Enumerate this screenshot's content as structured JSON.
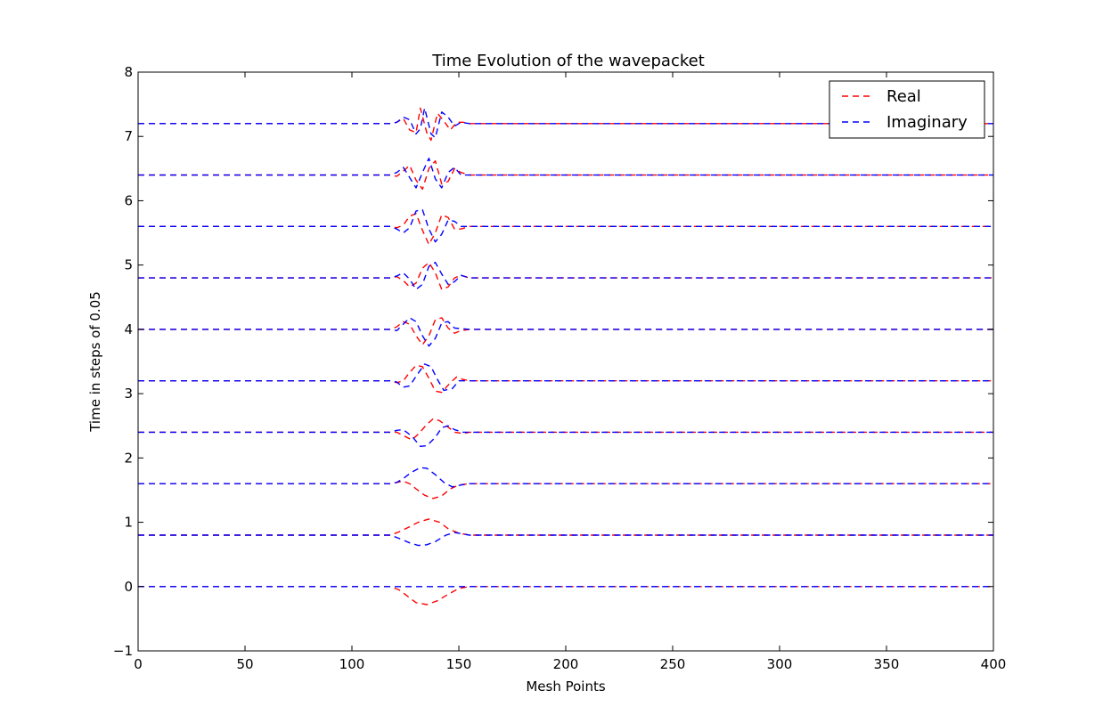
{
  "chart_data": {
    "type": "line",
    "title": "Time Evolution of the wavepacket",
    "xlabel": "Mesh Points",
    "ylabel": "Time in steps of 0.05",
    "xlim": [
      0,
      400
    ],
    "ylim": [
      -1,
      8
    ],
    "x_ticks": [
      "0",
      "50",
      "100",
      "150",
      "200",
      "250",
      "300",
      "350",
      "400"
    ],
    "y_ticks": [
      "−1",
      "0",
      "1",
      "2",
      "3",
      "4",
      "5",
      "6",
      "7",
      "8"
    ],
    "grid": false,
    "legend_position": "top-right",
    "packet_center": 135,
    "packet_region": [
      118,
      155
    ],
    "series": [
      {
        "name": "Real",
        "color": "#ff0000",
        "dash": "dashed"
      },
      {
        "name": "Imaginary",
        "color": "#0000ff",
        "dash": "dashed"
      }
    ],
    "snapshots": [
      {
        "offset": 0.0,
        "real": [
          [
            118,
            0.0
          ],
          [
            122,
            -0.05
          ],
          [
            126,
            -0.15
          ],
          [
            130,
            -0.25
          ],
          [
            135,
            -0.28
          ],
          [
            140,
            -0.22
          ],
          [
            145,
            -0.12
          ],
          [
            150,
            -0.03
          ],
          [
            155,
            0.0
          ]
        ],
        "imag": [
          [
            118,
            0.0
          ],
          [
            135,
            0.0
          ],
          [
            155,
            0.0
          ]
        ]
      },
      {
        "offset": 0.8,
        "real": [
          [
            118,
            0.8
          ],
          [
            122,
            0.85
          ],
          [
            127,
            0.93
          ],
          [
            131,
            1.0
          ],
          [
            136,
            1.05
          ],
          [
            141,
            1.0
          ],
          [
            145,
            0.9
          ],
          [
            150,
            0.83
          ],
          [
            155,
            0.8
          ]
        ],
        "imag": [
          [
            118,
            0.8
          ],
          [
            122,
            0.75
          ],
          [
            127,
            0.68
          ],
          [
            131,
            0.64
          ],
          [
            135,
            0.65
          ],
          [
            139,
            0.7
          ],
          [
            144,
            0.8
          ],
          [
            148,
            0.84
          ],
          [
            155,
            0.8
          ]
        ]
      },
      {
        "offset": 1.6,
        "real": [
          [
            118,
            1.6
          ],
          [
            121,
            1.62
          ],
          [
            124,
            1.64
          ],
          [
            127,
            1.6
          ],
          [
            130,
            1.52
          ],
          [
            134,
            1.42
          ],
          [
            138,
            1.37
          ],
          [
            142,
            1.41
          ],
          [
            146,
            1.52
          ],
          [
            150,
            1.58
          ],
          [
            155,
            1.6
          ]
        ],
        "imag": [
          [
            118,
            1.6
          ],
          [
            121,
            1.62
          ],
          [
            124,
            1.68
          ],
          [
            128,
            1.78
          ],
          [
            132,
            1.85
          ],
          [
            135,
            1.84
          ],
          [
            139,
            1.74
          ],
          [
            143,
            1.62
          ],
          [
            147,
            1.55
          ],
          [
            151,
            1.58
          ],
          [
            155,
            1.6
          ]
        ]
      },
      {
        "offset": 2.4,
        "real": [
          [
            118,
            2.4
          ],
          [
            121,
            2.4
          ],
          [
            124,
            2.35
          ],
          [
            128,
            2.28
          ],
          [
            131,
            2.37
          ],
          [
            135,
            2.52
          ],
          [
            138,
            2.61
          ],
          [
            141,
            2.58
          ],
          [
            145,
            2.48
          ],
          [
            148,
            2.4
          ],
          [
            152,
            2.38
          ],
          [
            155,
            2.4
          ]
        ],
        "imag": [
          [
            118,
            2.4
          ],
          [
            121,
            2.43
          ],
          [
            124,
            2.44
          ],
          [
            128,
            2.34
          ],
          [
            132,
            2.18
          ],
          [
            135,
            2.19
          ],
          [
            139,
            2.32
          ],
          [
            142,
            2.47
          ],
          [
            145,
            2.5
          ],
          [
            148,
            2.44
          ],
          [
            152,
            2.4
          ],
          [
            155,
            2.4
          ]
        ]
      },
      {
        "offset": 3.2,
        "real": [
          [
            118,
            3.2
          ],
          [
            121,
            3.17
          ],
          [
            124,
            3.2
          ],
          [
            127,
            3.33
          ],
          [
            130,
            3.44
          ],
          [
            133,
            3.42
          ],
          [
            136,
            3.24
          ],
          [
            139,
            3.04
          ],
          [
            142,
            3.02
          ],
          [
            146,
            3.17
          ],
          [
            149,
            3.26
          ],
          [
            152,
            3.22
          ],
          [
            155,
            3.2
          ]
        ],
        "imag": [
          [
            118,
            3.2
          ],
          [
            121,
            3.18
          ],
          [
            124,
            3.1
          ],
          [
            127,
            3.12
          ],
          [
            130,
            3.27
          ],
          [
            134,
            3.46
          ],
          [
            137,
            3.42
          ],
          [
            140,
            3.22
          ],
          [
            143,
            3.05
          ],
          [
            147,
            3.08
          ],
          [
            150,
            3.2
          ],
          [
            155,
            3.2
          ]
        ]
      },
      {
        "offset": 4.0,
        "real": [
          [
            118,
            4.0
          ],
          [
            121,
            4.04
          ],
          [
            124,
            4.12
          ],
          [
            127,
            4.08
          ],
          [
            130,
            3.9
          ],
          [
            133,
            3.76
          ],
          [
            136,
            3.9
          ],
          [
            139,
            4.15
          ],
          [
            142,
            4.18
          ],
          [
            145,
            4.02
          ],
          [
            148,
            3.94
          ],
          [
            151,
            3.98
          ],
          [
            155,
            4.0
          ]
        ],
        "imag": [
          [
            118,
            4.0
          ],
          [
            121,
            3.98
          ],
          [
            124,
            4.08
          ],
          [
            127,
            4.18
          ],
          [
            130,
            4.12
          ],
          [
            133,
            3.9
          ],
          [
            136,
            3.74
          ],
          [
            139,
            3.86
          ],
          [
            142,
            4.1
          ],
          [
            145,
            4.12
          ],
          [
            148,
            4.02
          ],
          [
            155,
            4.0
          ]
        ]
      },
      {
        "offset": 4.8,
        "real": [
          [
            118,
            4.8
          ],
          [
            121,
            4.82
          ],
          [
            124,
            4.76
          ],
          [
            127,
            4.66
          ],
          [
            130,
            4.72
          ],
          [
            133,
            4.95
          ],
          [
            136,
            5.04
          ],
          [
            139,
            4.88
          ],
          [
            142,
            4.62
          ],
          [
            145,
            4.66
          ],
          [
            148,
            4.8
          ],
          [
            151,
            4.84
          ],
          [
            155,
            4.8
          ]
        ],
        "imag": [
          [
            118,
            4.8
          ],
          [
            121,
            4.83
          ],
          [
            124,
            4.88
          ],
          [
            127,
            4.78
          ],
          [
            130,
            4.62
          ],
          [
            133,
            4.7
          ],
          [
            136,
            4.98
          ],
          [
            139,
            5.04
          ],
          [
            142,
            4.86
          ],
          [
            145,
            4.7
          ],
          [
            148,
            4.74
          ],
          [
            151,
            4.84
          ],
          [
            155,
            4.8
          ]
        ]
      },
      {
        "offset": 5.6,
        "real": [
          [
            118,
            5.6
          ],
          [
            121,
            5.58
          ],
          [
            124,
            5.62
          ],
          [
            127,
            5.76
          ],
          [
            130,
            5.8
          ],
          [
            133,
            5.54
          ],
          [
            136,
            5.32
          ],
          [
            139,
            5.5
          ],
          [
            142,
            5.78
          ],
          [
            145,
            5.74
          ],
          [
            148,
            5.56
          ],
          [
            151,
            5.56
          ],
          [
            155,
            5.6
          ]
        ],
        "imag": [
          [
            118,
            5.6
          ],
          [
            121,
            5.56
          ],
          [
            124,
            5.5
          ],
          [
            127,
            5.58
          ],
          [
            130,
            5.84
          ],
          [
            133,
            5.86
          ],
          [
            136,
            5.56
          ],
          [
            139,
            5.36
          ],
          [
            142,
            5.48
          ],
          [
            145,
            5.7
          ],
          [
            148,
            5.68
          ],
          [
            151,
            5.6
          ],
          [
            155,
            5.6
          ]
        ]
      },
      {
        "offset": 6.4,
        "real": [
          [
            118,
            6.4
          ],
          [
            121,
            6.38
          ],
          [
            124,
            6.46
          ],
          [
            127,
            6.55
          ],
          [
            130,
            6.32
          ],
          [
            133,
            6.18
          ],
          [
            136,
            6.5
          ],
          [
            139,
            6.62
          ],
          [
            142,
            6.26
          ],
          [
            145,
            6.3
          ],
          [
            148,
            6.5
          ],
          [
            151,
            6.44
          ],
          [
            155,
            6.4
          ]
        ],
        "imag": [
          [
            118,
            6.4
          ],
          [
            121,
            6.44
          ],
          [
            124,
            6.52
          ],
          [
            127,
            6.36
          ],
          [
            130,
            6.2
          ],
          [
            133,
            6.44
          ],
          [
            136,
            6.66
          ],
          [
            139,
            6.34
          ],
          [
            142,
            6.2
          ],
          [
            145,
            6.44
          ],
          [
            148,
            6.52
          ],
          [
            151,
            6.4
          ],
          [
            155,
            6.4
          ]
        ]
      },
      {
        "offset": 7.2,
        "real": [
          [
            118,
            7.2
          ],
          [
            121,
            7.22
          ],
          [
            124,
            7.28
          ],
          [
            127,
            7.1
          ],
          [
            130,
            7.06
          ],
          [
            132,
            7.44
          ],
          [
            135,
            7.06
          ],
          [
            137,
            6.94
          ],
          [
            140,
            7.36
          ],
          [
            143,
            7.24
          ],
          [
            146,
            7.1
          ],
          [
            149,
            7.22
          ],
          [
            152,
            7.22
          ],
          [
            155,
            7.2
          ]
        ],
        "imag": [
          [
            118,
            7.2
          ],
          [
            121,
            7.22
          ],
          [
            124,
            7.3
          ],
          [
            127,
            7.26
          ],
          [
            130,
            7.04
          ],
          [
            132,
            7.12
          ],
          [
            134,
            7.44
          ],
          [
            137,
            7.04
          ],
          [
            139,
            6.98
          ],
          [
            142,
            7.38
          ],
          [
            145,
            7.3
          ],
          [
            148,
            7.16
          ],
          [
            151,
            7.22
          ],
          [
            155,
            7.2
          ]
        ]
      }
    ]
  }
}
